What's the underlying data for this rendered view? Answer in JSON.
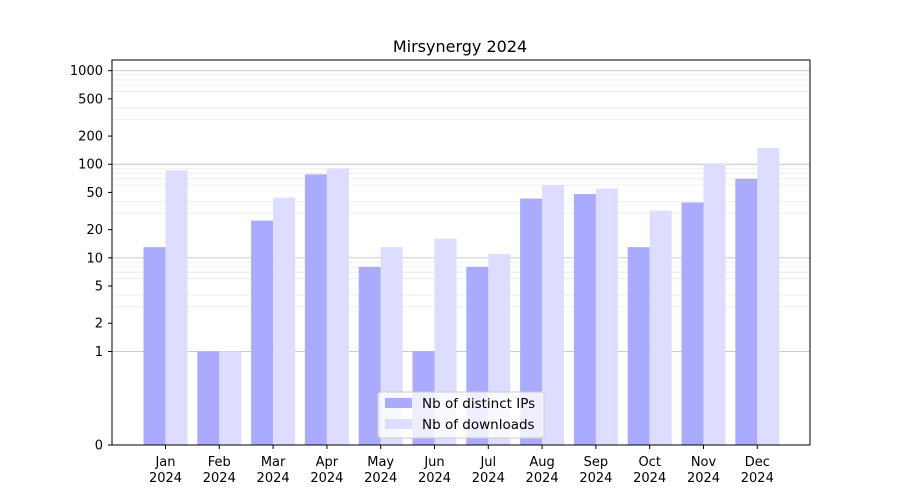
{
  "chart_data": {
    "type": "bar",
    "title": "Mirsynergy 2024",
    "xlabel": "",
    "ylabel": "",
    "yscale": "symlog",
    "ylim": [
      0,
      1300
    ],
    "y_ticks": [
      0,
      1,
      2,
      5,
      10,
      20,
      50,
      100,
      200,
      500,
      1000
    ],
    "y_tick_labels": [
      "0",
      "1",
      "2",
      "5",
      "10",
      "20",
      "50",
      "100",
      "200",
      "500",
      "1000"
    ],
    "categories": [
      [
        "Jan",
        "2024"
      ],
      [
        "Feb",
        "2024"
      ],
      [
        "Mar",
        "2024"
      ],
      [
        "Apr",
        "2024"
      ],
      [
        "May",
        "2024"
      ],
      [
        "Jun",
        "2024"
      ],
      [
        "Jul",
        "2024"
      ],
      [
        "Aug",
        "2024"
      ],
      [
        "Sep",
        "2024"
      ],
      [
        "Oct",
        "2024"
      ],
      [
        "Nov",
        "2024"
      ],
      [
        "Dec",
        "2024"
      ]
    ],
    "series": [
      {
        "name": "Nb of distinct IPs",
        "color": "#aaaaff",
        "values": [
          13,
          1,
          25,
          78,
          8,
          1,
          8,
          43,
          48,
          13,
          39,
          70
        ]
      },
      {
        "name": "Nb of downloads",
        "color": "#ddddff",
        "values": [
          86,
          1,
          44,
          90,
          13,
          16,
          11,
          60,
          55,
          32,
          102,
          150
        ]
      }
    ],
    "grid": true,
    "legend_position": "bottom-center"
  }
}
